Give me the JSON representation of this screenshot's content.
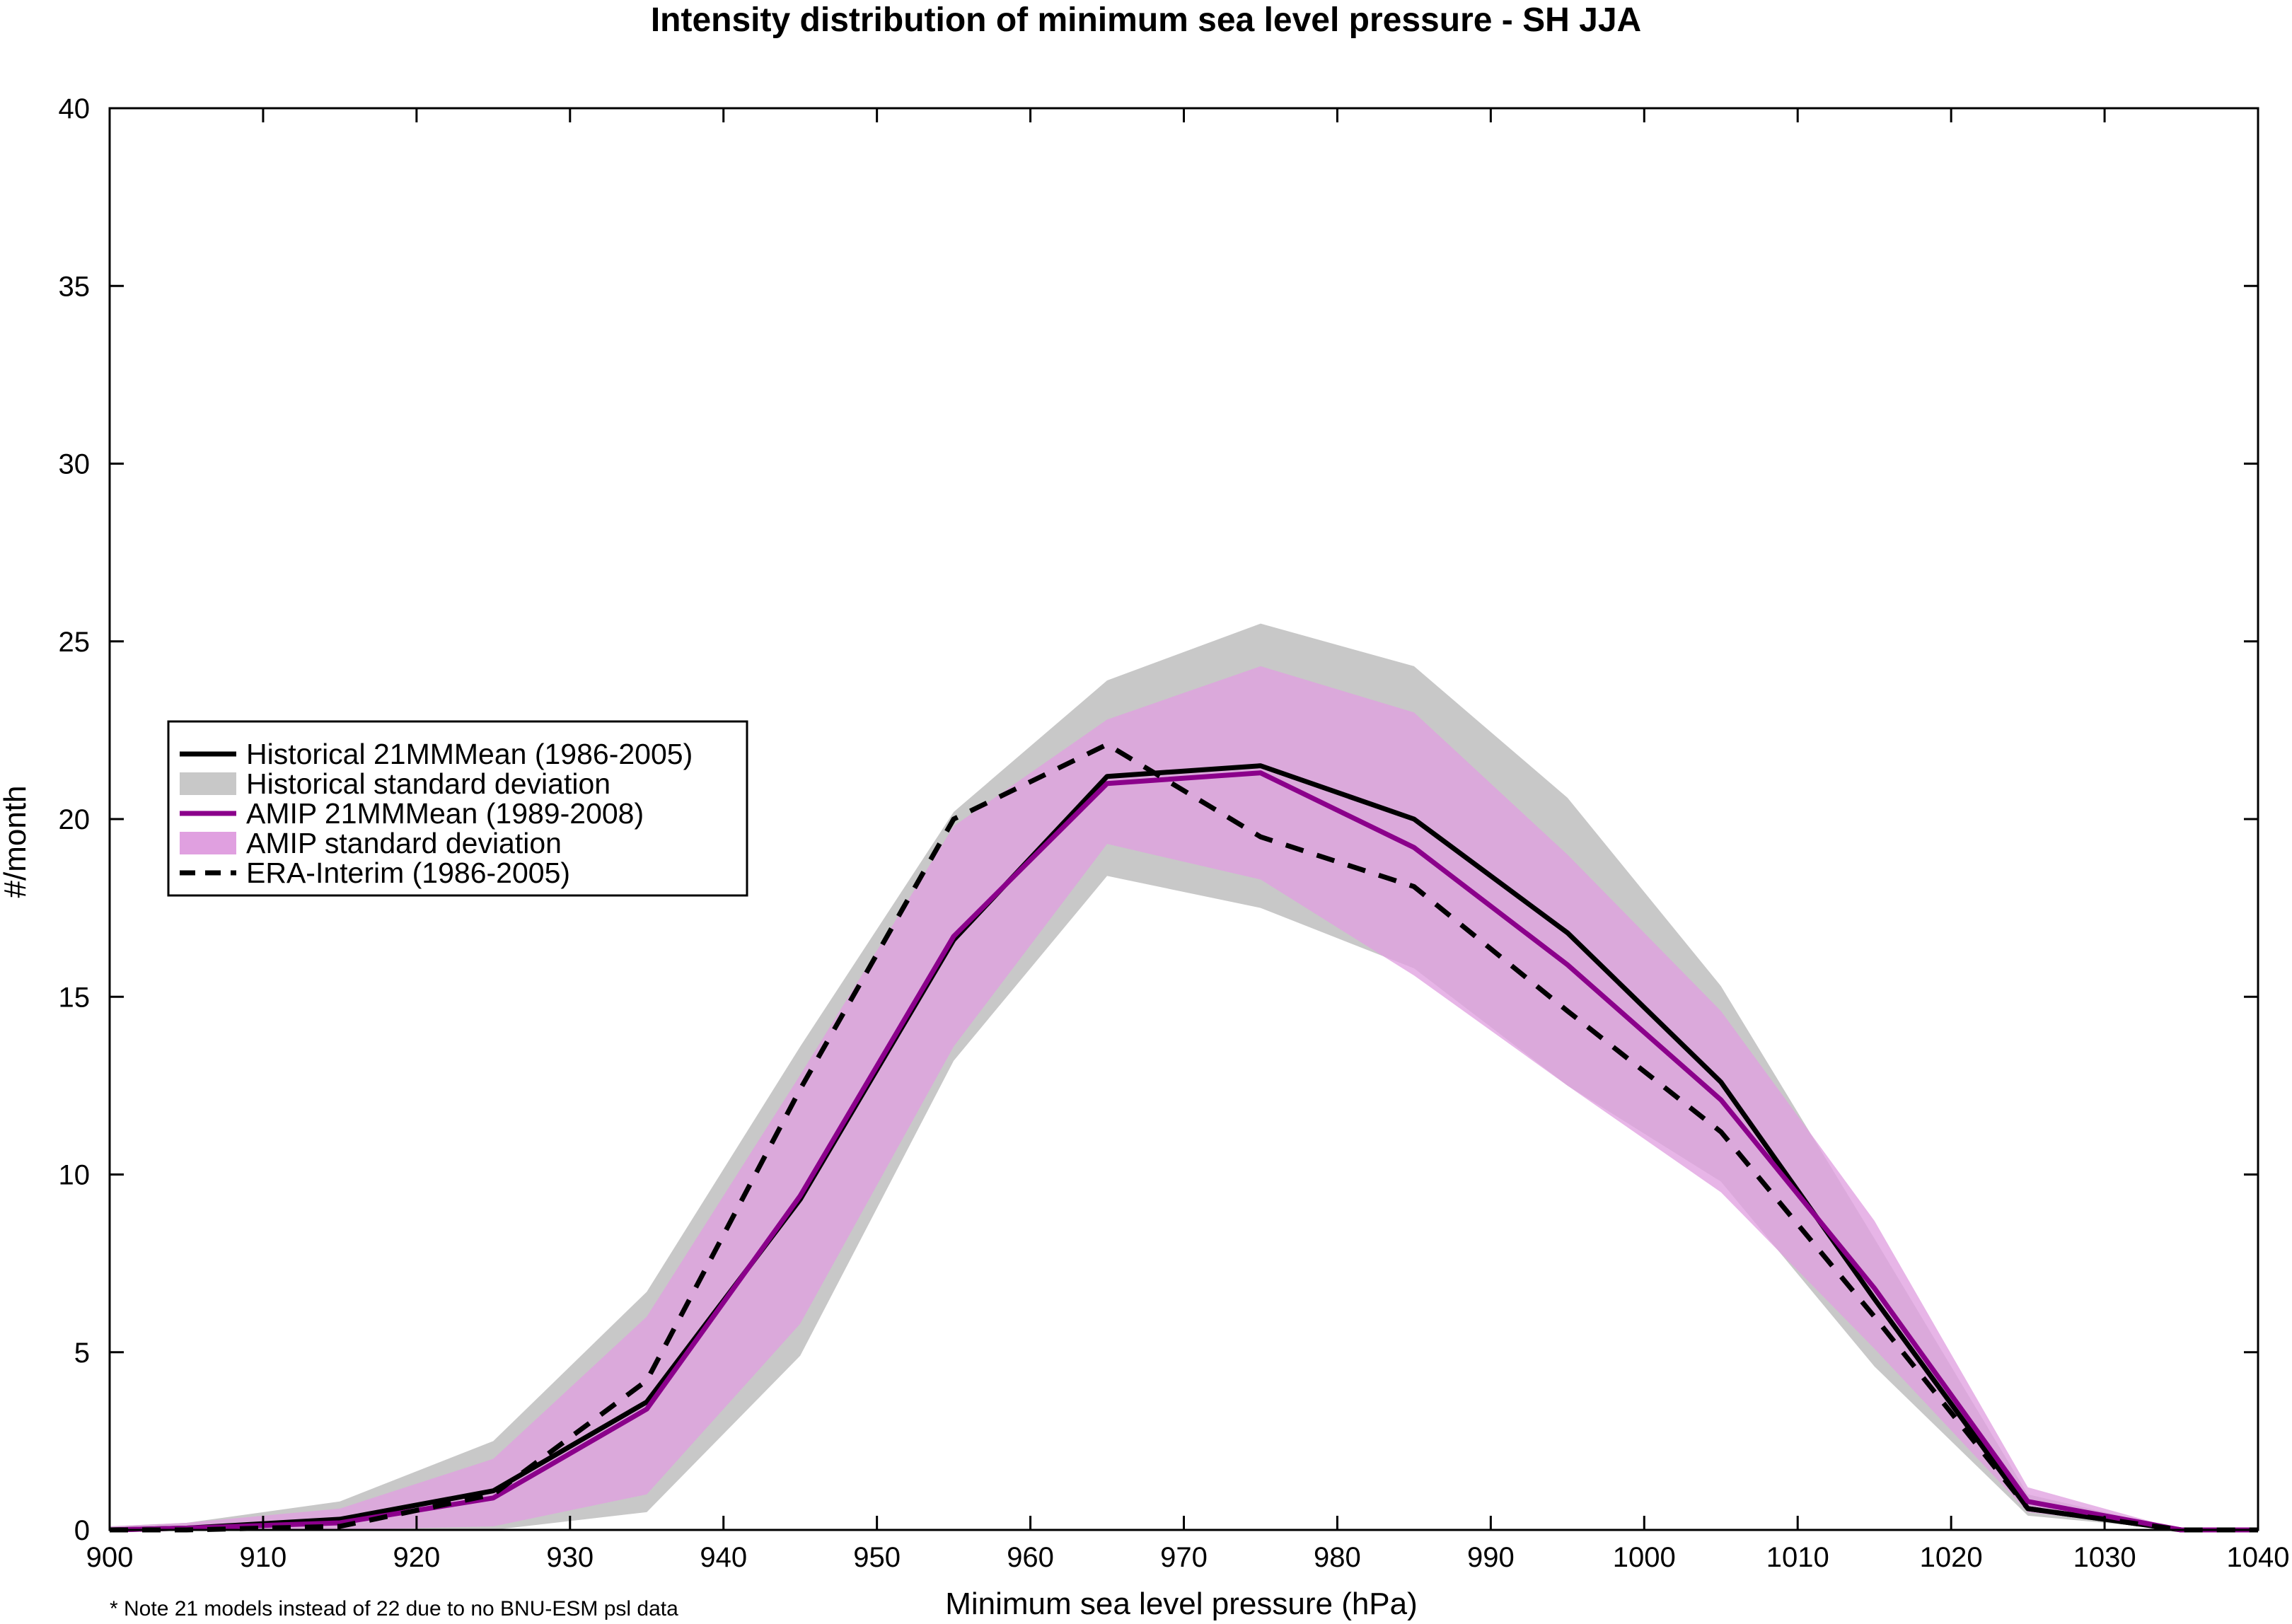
{
  "chart_data": {
    "type": "line",
    "title": "Intensity distribution of minimum sea level pressure - SH JJA",
    "xlabel": "Minimum sea level pressure (hPa)",
    "ylabel": "#/month",
    "xlim": [
      900,
      1040
    ],
    "ylim": [
      0,
      40
    ],
    "x_ticks": [
      900,
      910,
      920,
      930,
      940,
      950,
      960,
      970,
      980,
      990,
      1000,
      1010,
      1020,
      1030,
      1040
    ],
    "y_ticks": [
      0,
      5,
      10,
      15,
      20,
      25,
      30,
      35,
      40
    ],
    "x": [
      900,
      905,
      915,
      925,
      935,
      945,
      955,
      965,
      975,
      985,
      995,
      1005,
      1015,
      1025,
      1035,
      1040
    ],
    "grid": false,
    "legend_position": "left",
    "footnote": "* Note 21 models instead of 22 due to no BNU-ESM psl data",
    "bands": [
      {
        "name": "Historical standard deviation",
        "color": "#c8c8c8",
        "lower": [
          0,
          0,
          0,
          0,
          0.5,
          4.9,
          13.2,
          18.4,
          17.5,
          15.8,
          12.5,
          9.8,
          4.6,
          0.4,
          0,
          0
        ],
        "upper": [
          0.1,
          0.2,
          0.8,
          2.5,
          6.7,
          13.6,
          20.2,
          23.9,
          25.5,
          24.3,
          20.6,
          15.3,
          8.2,
          1.0,
          0,
          0
        ]
      },
      {
        "name": "AMIP standard deviation",
        "color": "#e0a0e0",
        "lower": [
          0,
          0,
          0,
          0.1,
          1.0,
          5.8,
          13.6,
          19.3,
          18.3,
          15.6,
          12.5,
          9.5,
          5.1,
          0.5,
          0,
          0
        ],
        "upper": [
          0.1,
          0.2,
          0.6,
          2.0,
          6.0,
          12.8,
          19.8,
          22.8,
          24.3,
          23.0,
          19.0,
          14.6,
          8.7,
          1.2,
          0,
          0
        ]
      }
    ],
    "series": [
      {
        "name": "Historical 21MMMean (1986-2005)",
        "color": "#000000",
        "dash": "solid",
        "values": [
          0,
          0.05,
          0.3,
          1.1,
          3.6,
          9.3,
          16.6,
          21.2,
          21.5,
          20.0,
          16.8,
          12.6,
          6.5,
          0.6,
          0,
          0
        ]
      },
      {
        "name": "AMIP 21MMMean (1989-2008)",
        "color": "#8b008b",
        "dash": "solid",
        "values": [
          0,
          0.05,
          0.2,
          0.9,
          3.4,
          9.4,
          16.7,
          21.0,
          21.3,
          19.2,
          15.9,
          12.1,
          6.8,
          0.8,
          0,
          0
        ]
      },
      {
        "name": "ERA-Interim (1986-2005)",
        "color": "#000000",
        "dash": "dashed",
        "values": [
          0,
          0,
          0.1,
          1.0,
          4.2,
          12.4,
          20.0,
          22.1,
          19.5,
          18.1,
          14.6,
          11.2,
          6.0,
          0.6,
          0,
          0
        ]
      }
    ],
    "legend": [
      {
        "label": "Historical 21MMMean (1986-2005)",
        "kind": "line",
        "color": "#000000",
        "dash": "solid"
      },
      {
        "label": "Historical standard deviation",
        "kind": "patch",
        "color": "#c8c8c8"
      },
      {
        "label": "AMIP 21MMMean (1989-2008)",
        "kind": "line",
        "color": "#8b008b",
        "dash": "solid"
      },
      {
        "label": "AMIP standard deviation",
        "kind": "patch",
        "color": "#e0a0e0"
      },
      {
        "label": "ERA-Interim (1986-2005)",
        "kind": "line",
        "color": "#000000",
        "dash": "dashed"
      }
    ]
  }
}
